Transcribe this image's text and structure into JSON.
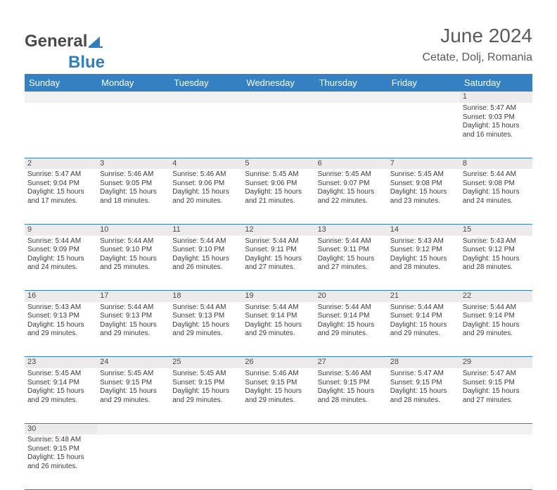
{
  "logo": {
    "word1": "General",
    "word2": "Blue",
    "color_gray": "#4a4a4a",
    "color_blue": "#2d7fc1",
    "shape_fill": "#2d7fc1"
  },
  "header": {
    "month_title": "June 2024",
    "location": "Cetate, Dolj, Romania",
    "title_color": "#5a5a5a",
    "title_fontsize": 28,
    "location_fontsize": 16
  },
  "calendar": {
    "header_bg": "#3580c2",
    "header_fg": "#ffffff",
    "daynum_bg": "#eceaea",
    "border_color": "#3580c2",
    "cell_fontsize": 10,
    "columns": [
      "Sunday",
      "Monday",
      "Tuesday",
      "Wednesday",
      "Thursday",
      "Friday",
      "Saturday"
    ],
    "first_day_col": 6,
    "days": [
      {
        "n": 1,
        "sunrise": "5:47 AM",
        "sunset": "9:03 PM",
        "dl_h": 15,
        "dl_m": 16
      },
      {
        "n": 2,
        "sunrise": "5:47 AM",
        "sunset": "9:04 PM",
        "dl_h": 15,
        "dl_m": 17
      },
      {
        "n": 3,
        "sunrise": "5:46 AM",
        "sunset": "9:05 PM",
        "dl_h": 15,
        "dl_m": 18
      },
      {
        "n": 4,
        "sunrise": "5:46 AM",
        "sunset": "9:06 PM",
        "dl_h": 15,
        "dl_m": 20
      },
      {
        "n": 5,
        "sunrise": "5:45 AM",
        "sunset": "9:06 PM",
        "dl_h": 15,
        "dl_m": 21
      },
      {
        "n": 6,
        "sunrise": "5:45 AM",
        "sunset": "9:07 PM",
        "dl_h": 15,
        "dl_m": 22
      },
      {
        "n": 7,
        "sunrise": "5:45 AM",
        "sunset": "9:08 PM",
        "dl_h": 15,
        "dl_m": 23
      },
      {
        "n": 8,
        "sunrise": "5:44 AM",
        "sunset": "9:08 PM",
        "dl_h": 15,
        "dl_m": 24
      },
      {
        "n": 9,
        "sunrise": "5:44 AM",
        "sunset": "9:09 PM",
        "dl_h": 15,
        "dl_m": 24
      },
      {
        "n": 10,
        "sunrise": "5:44 AM",
        "sunset": "9:10 PM",
        "dl_h": 15,
        "dl_m": 25
      },
      {
        "n": 11,
        "sunrise": "5:44 AM",
        "sunset": "9:10 PM",
        "dl_h": 15,
        "dl_m": 26
      },
      {
        "n": 12,
        "sunrise": "5:44 AM",
        "sunset": "9:11 PM",
        "dl_h": 15,
        "dl_m": 27
      },
      {
        "n": 13,
        "sunrise": "5:44 AM",
        "sunset": "9:11 PM",
        "dl_h": 15,
        "dl_m": 27
      },
      {
        "n": 14,
        "sunrise": "5:43 AM",
        "sunset": "9:12 PM",
        "dl_h": 15,
        "dl_m": 28
      },
      {
        "n": 15,
        "sunrise": "5:43 AM",
        "sunset": "9:12 PM",
        "dl_h": 15,
        "dl_m": 28
      },
      {
        "n": 16,
        "sunrise": "5:43 AM",
        "sunset": "9:13 PM",
        "dl_h": 15,
        "dl_m": 29
      },
      {
        "n": 17,
        "sunrise": "5:44 AM",
        "sunset": "9:13 PM",
        "dl_h": 15,
        "dl_m": 29
      },
      {
        "n": 18,
        "sunrise": "5:44 AM",
        "sunset": "9:13 PM",
        "dl_h": 15,
        "dl_m": 29
      },
      {
        "n": 19,
        "sunrise": "5:44 AM",
        "sunset": "9:14 PM",
        "dl_h": 15,
        "dl_m": 29
      },
      {
        "n": 20,
        "sunrise": "5:44 AM",
        "sunset": "9:14 PM",
        "dl_h": 15,
        "dl_m": 29
      },
      {
        "n": 21,
        "sunrise": "5:44 AM",
        "sunset": "9:14 PM",
        "dl_h": 15,
        "dl_m": 29
      },
      {
        "n": 22,
        "sunrise": "5:44 AM",
        "sunset": "9:14 PM",
        "dl_h": 15,
        "dl_m": 29
      },
      {
        "n": 23,
        "sunrise": "5:45 AM",
        "sunset": "9:14 PM",
        "dl_h": 15,
        "dl_m": 29
      },
      {
        "n": 24,
        "sunrise": "5:45 AM",
        "sunset": "9:15 PM",
        "dl_h": 15,
        "dl_m": 29
      },
      {
        "n": 25,
        "sunrise": "5:45 AM",
        "sunset": "9:15 PM",
        "dl_h": 15,
        "dl_m": 29
      },
      {
        "n": 26,
        "sunrise": "5:46 AM",
        "sunset": "9:15 PM",
        "dl_h": 15,
        "dl_m": 29
      },
      {
        "n": 27,
        "sunrise": "5:46 AM",
        "sunset": "9:15 PM",
        "dl_h": 15,
        "dl_m": 28
      },
      {
        "n": 28,
        "sunrise": "5:47 AM",
        "sunset": "9:15 PM",
        "dl_h": 15,
        "dl_m": 28
      },
      {
        "n": 29,
        "sunrise": "5:47 AM",
        "sunset": "9:15 PM",
        "dl_h": 15,
        "dl_m": 27
      },
      {
        "n": 30,
        "sunrise": "5:48 AM",
        "sunset": "9:15 PM",
        "dl_h": 15,
        "dl_m": 26
      }
    ],
    "labels": {
      "sunrise": "Sunrise:",
      "sunset": "Sunset:",
      "daylight": "Daylight:",
      "hours": "hours",
      "and": "and",
      "minutes": "minutes."
    }
  }
}
